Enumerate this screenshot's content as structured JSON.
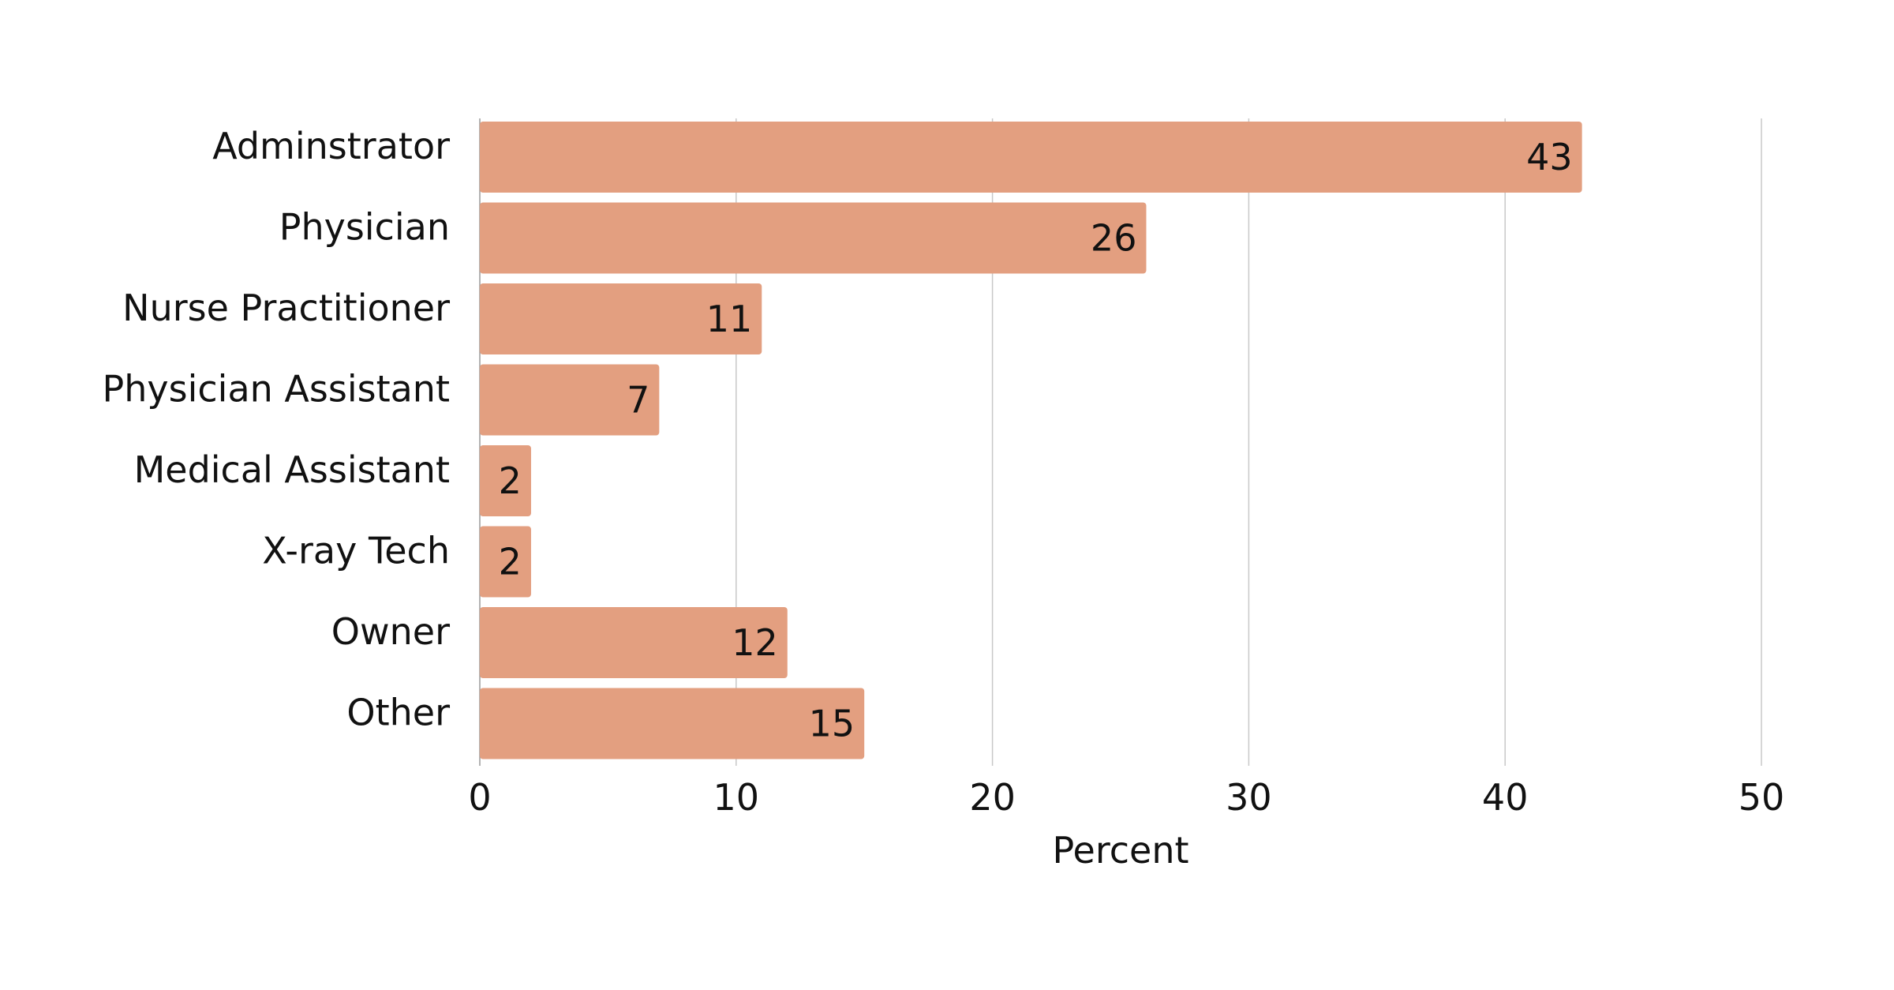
{
  "chart_data": {
    "type": "bar",
    "orientation": "horizontal",
    "categories": [
      "Adminstrator",
      "Physician",
      "Nurse Practitioner",
      "Physician Assistant",
      "Medical Assistant",
      "X-ray Tech",
      "Owner",
      "Other"
    ],
    "values": [
      43,
      26,
      11,
      7,
      2,
      2,
      12,
      15
    ],
    "title": "",
    "xlabel": "Percent",
    "ylabel": "",
    "xlim": [
      0,
      50
    ],
    "xticks": [
      0,
      10,
      20,
      30,
      40,
      50
    ],
    "grid": "vertical",
    "data_labels": "inside-end",
    "colors": {
      "bar": "#E39F80",
      "grid": "#c8c8c8",
      "text": "#111111"
    }
  }
}
